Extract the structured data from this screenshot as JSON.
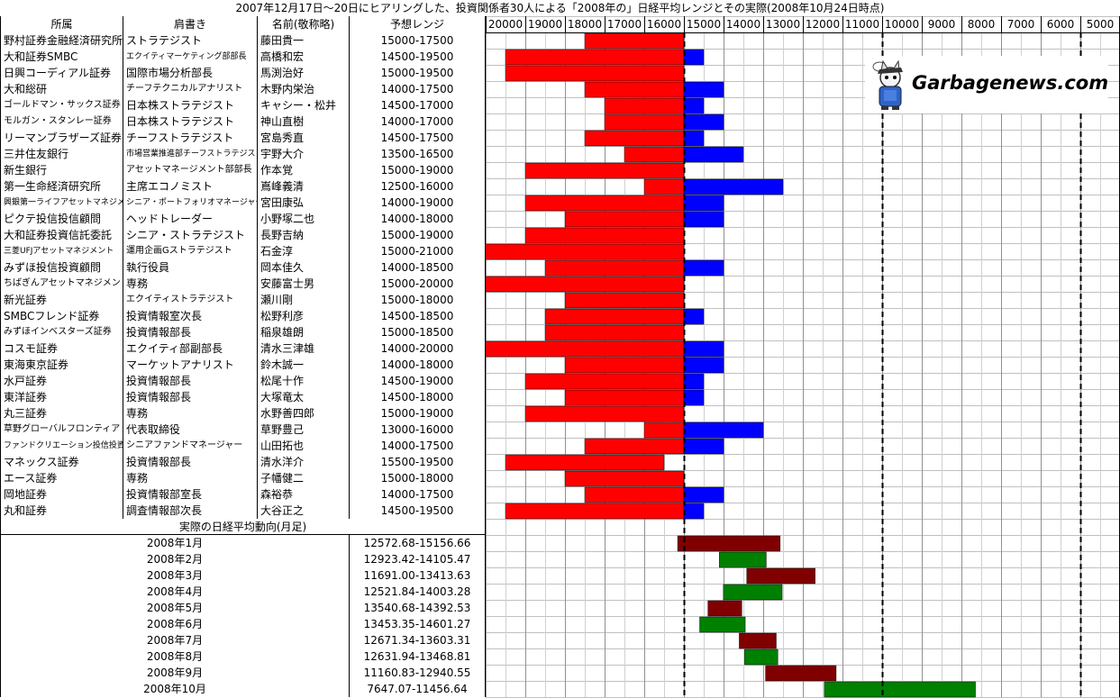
{
  "title": "2007年12月17日～20日にヒアリングした、投資関係者30人による「2008年の」日経平均レンジとその実際(2008年10月24日時点)",
  "headers": {
    "org": "所属",
    "position": "肩書き",
    "name": "名前(敬称略)",
    "range": "予想レンジ"
  },
  "section_title": "実際の日経平均動向(月足)",
  "logo": {
    "text": "Garbagenews.com",
    "icon": "cat-mascot-icon"
  },
  "colors": {
    "red": "#ff0000",
    "blue": "#0000ff",
    "darkred": "#800000",
    "green": "#008000"
  },
  "chart_data": {
    "type": "bar",
    "axis": {
      "ticks": [
        20000,
        19000,
        18000,
        17000,
        16000,
        15000,
        14000,
        13000,
        12000,
        11000,
        10000,
        9000,
        8000,
        7000,
        6000,
        5000
      ],
      "reversed": true
    },
    "forecasts": [
      {
        "org": "野村証券金融経済研究所",
        "position": "ストラテジスト",
        "name": "藤田貴一",
        "range": "15000-17500",
        "low": 15000,
        "high": 17500
      },
      {
        "org": "大和証券SMBC",
        "position": "エクイティマーケティング部部長",
        "name": "高橋和宏",
        "range": "14500-19500",
        "low": 14500,
        "high": 19500
      },
      {
        "org": "日興コーディアル証券",
        "position": "国際市場分析部長",
        "name": "馬渕治好",
        "range": "15000-19500",
        "low": 15000,
        "high": 19500
      },
      {
        "org": "大和総研",
        "position": "チーフテクニカルアナリスト",
        "name": "木野内栄治",
        "range": "14000-17500",
        "low": 14000,
        "high": 17500
      },
      {
        "org": "ゴールドマン・サックス証券",
        "position": "日本株ストラテジスト",
        "name": "キャシー・松井",
        "range": "14500-17000",
        "low": 14500,
        "high": 17000
      },
      {
        "org": "モルガン・スタンレー証券",
        "position": "日本株ストラテジスト",
        "name": "神山直樹",
        "range": "14000-17000",
        "low": 14000,
        "high": 17000
      },
      {
        "org": "リーマンブラザーズ証券",
        "position": "チーフストラテジスト",
        "name": "宮島秀直",
        "range": "14500-17500",
        "low": 14500,
        "high": 17500
      },
      {
        "org": "三井住友銀行",
        "position": "市場営業推進部チーフストラテジスト",
        "name": "宇野大介",
        "range": "13500-16500",
        "low": 13500,
        "high": 16500
      },
      {
        "org": "新生銀行",
        "position": "アセットマネージメント部部長",
        "name": "作本覚",
        "range": "15000-19000",
        "low": 15000,
        "high": 19000
      },
      {
        "org": "第一生命経済研究所",
        "position": "主席エコノミスト",
        "name": "嶌峰義清",
        "range": "12500-16000",
        "low": 12500,
        "high": 16000
      },
      {
        "org": "興銀第一ライフアセットマネジメント",
        "position": "シニア・ポートフォリオマネージャー",
        "name": "宮田康弘",
        "range": "14000-19000",
        "low": 14000,
        "high": 19000
      },
      {
        "org": "ピクテ投信投信顧問",
        "position": "ヘッドトレーダー",
        "name": "小野塚二也",
        "range": "14000-18000",
        "low": 14000,
        "high": 18000
      },
      {
        "org": "大和証券投資信託委託",
        "position": "シニア・ストラテジスト",
        "name": "長野吉納",
        "range": "15000-19000",
        "low": 15000,
        "high": 19000
      },
      {
        "org": "三菱UFJアセットマネジメント",
        "position": "運用企画Gストラテジスト",
        "name": "石金淳",
        "range": "15000-21000",
        "low": 15000,
        "high": 21000
      },
      {
        "org": "みずほ投信投資顧問",
        "position": "執行役員",
        "name": "岡本佳久",
        "range": "14000-18500",
        "low": 14000,
        "high": 18500
      },
      {
        "org": "ちばぎんアセットマネジメント",
        "position": "専務",
        "name": "安藤富士男",
        "range": "15000-20000",
        "low": 15000,
        "high": 20000
      },
      {
        "org": "新光証券",
        "position": "エクイティストラテジスト",
        "name": "瀬川剛",
        "range": "15000-18000",
        "low": 15000,
        "high": 18000
      },
      {
        "org": "SMBCフレンド証券",
        "position": "投資情報室次長",
        "name": "松野利彦",
        "range": "14500-18500",
        "low": 14500,
        "high": 18500
      },
      {
        "org": "みずほインベスターズ証券",
        "position": "投資情報部長",
        "name": "稲泉雄朗",
        "range": "15000-18500",
        "low": 15000,
        "high": 18500
      },
      {
        "org": "コスモ証券",
        "position": "エクイティ部副部長",
        "name": "清水三津雄",
        "range": "14000-20000",
        "low": 14000,
        "high": 20000
      },
      {
        "org": "東海東京証券",
        "position": "マーケットアナリスト",
        "name": "鈴木誠一",
        "range": "14000-18000",
        "low": 14000,
        "high": 18000
      },
      {
        "org": "水戸証券",
        "position": "投資情報部長",
        "name": "松尾十作",
        "range": "14500-19000",
        "low": 14500,
        "high": 19000
      },
      {
        "org": "東洋証券",
        "position": "投資情報部長",
        "name": "大塚竜太",
        "range": "14500-18000",
        "low": 14500,
        "high": 18000
      },
      {
        "org": "丸三証券",
        "position": "専務",
        "name": "水野善四郎",
        "range": "15000-19000",
        "low": 15000,
        "high": 19000
      },
      {
        "org": "草野グローバルフロンティア",
        "position": "代表取締役",
        "name": "草野豊己",
        "range": "13000-16000",
        "low": 13000,
        "high": 16000
      },
      {
        "org": "ファンドクリエーション投信投資顧問",
        "position": "シニアファンドマネージャー",
        "name": "山田拓也",
        "range": "14000-17500",
        "low": 14000,
        "high": 17500
      },
      {
        "org": "マネックス証券",
        "position": "投資情報部長",
        "name": "清水洋介",
        "range": "15500-19500",
        "low": 15500,
        "high": 19500
      },
      {
        "org": "エース証券",
        "position": "専務",
        "name": "子幡健二",
        "range": "15000-18000",
        "low": 15000,
        "high": 18000
      },
      {
        "org": "岡地証券",
        "position": "投資情報部室長",
        "name": "森裕恭",
        "range": "14000-17500",
        "low": 14000,
        "high": 17500
      },
      {
        "org": "丸和証券",
        "position": "調査情報部次長",
        "name": "大谷正之",
        "range": "14500-19500",
        "low": 14500,
        "high": 19500
      }
    ],
    "actual": [
      {
        "month": "2008年1月",
        "range": "12572.68-15156.66",
        "low": 12572.68,
        "high": 15156.66,
        "color": "darkred"
      },
      {
        "month": "2008年2月",
        "range": "12923.42-14105.47",
        "low": 12923.42,
        "high": 14105.47,
        "color": "green"
      },
      {
        "month": "2008年3月",
        "range": "11691.00-13413.63",
        "low": 11691.0,
        "high": 13413.63,
        "color": "darkred"
      },
      {
        "month": "2008年4月",
        "range": "12521.84-14003.28",
        "low": 12521.84,
        "high": 14003.28,
        "color": "green"
      },
      {
        "month": "2008年5月",
        "range": "13540.68-14392.53",
        "low": 13540.68,
        "high": 14392.53,
        "color": "darkred"
      },
      {
        "month": "2008年6月",
        "range": "13453.35-14601.27",
        "low": 13453.35,
        "high": 14601.27,
        "color": "green"
      },
      {
        "month": "2008年7月",
        "range": "12671.34-13603.31",
        "low": 12671.34,
        "high": 13603.31,
        "color": "darkred"
      },
      {
        "month": "2008年8月",
        "range": "12631.94-13468.81",
        "low": 12631.94,
        "high": 13468.81,
        "color": "green"
      },
      {
        "month": "2008年9月",
        "range": "11160.83-12940.55",
        "low": 11160.83,
        "high": 12940.55,
        "color": "darkred"
      },
      {
        "month": "2008年10月",
        "range": "7647.07-11456.64",
        "low": 7647.07,
        "high": 11456.64,
        "color": "green"
      }
    ]
  }
}
